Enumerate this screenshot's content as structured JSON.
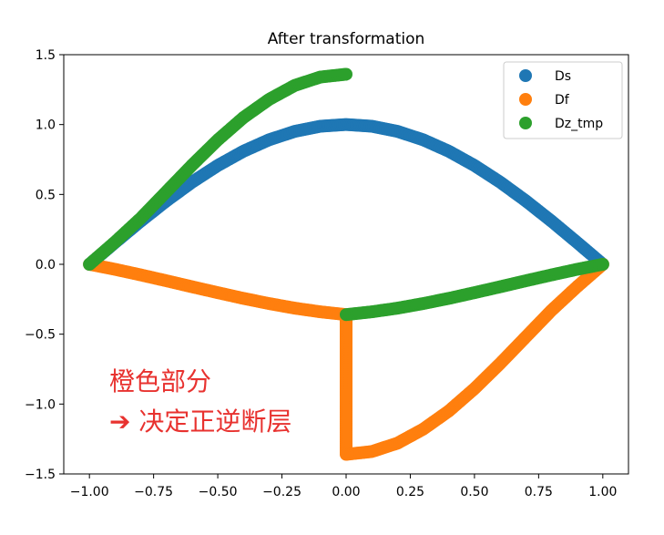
{
  "chart_data": {
    "type": "scatter",
    "title": "After transformation",
    "xlabel": "",
    "ylabel": "",
    "xlim": [
      -1.1,
      1.1
    ],
    "ylim": [
      -1.5,
      1.5
    ],
    "xticks": [
      -1.0,
      -0.75,
      -0.5,
      -0.25,
      0.0,
      0.25,
      0.5,
      0.75,
      1.0
    ],
    "xtick_labels": [
      "−1.00",
      "−0.75",
      "−0.50",
      "−0.25",
      "0.00",
      "0.25",
      "0.50",
      "0.75",
      "1.00"
    ],
    "yticks": [
      -1.5,
      -1.0,
      -0.5,
      0.0,
      0.5,
      1.0,
      1.5
    ],
    "ytick_labels": [
      "−1.5",
      "−1.0",
      "−0.5",
      "0.0",
      "0.5",
      "1.0",
      "1.5"
    ],
    "grid": false,
    "legend_position": "top-right",
    "series": [
      {
        "name": "Ds",
        "color": "#1f77b4",
        "x": [
          -1.0,
          -0.9,
          -0.8,
          -0.7,
          -0.6,
          -0.5,
          -0.4,
          -0.3,
          -0.2,
          -0.1,
          0.0,
          0.1,
          0.2,
          0.3,
          0.4,
          0.5,
          0.6,
          0.7,
          0.8,
          0.9,
          1.0
        ],
        "y": [
          0.0,
          0.156,
          0.309,
          0.454,
          0.588,
          0.707,
          0.809,
          0.891,
          0.951,
          0.988,
          1.0,
          0.988,
          0.951,
          0.891,
          0.809,
          0.707,
          0.588,
          0.454,
          0.309,
          0.156,
          0.0
        ]
      },
      {
        "name": "Df",
        "color": "#ff7f0e",
        "x": [
          -1.0,
          -0.9,
          -0.8,
          -0.7,
          -0.6,
          -0.5,
          -0.4,
          -0.3,
          -0.2,
          -0.1,
          0.0,
          0.0,
          0.1,
          0.2,
          0.3,
          0.4,
          0.5,
          0.6,
          0.7,
          0.8,
          0.9,
          1.0
        ],
        "y": [
          0.0,
          -0.036,
          -0.076,
          -0.118,
          -0.161,
          -0.203,
          -0.244,
          -0.281,
          -0.314,
          -0.34,
          -0.36,
          -1.36,
          -1.34,
          -1.28,
          -1.18,
          -1.05,
          -0.89,
          -0.71,
          -0.52,
          -0.33,
          -0.16,
          0.0
        ]
      },
      {
        "name": "Dz_tmp",
        "color": "#2ca02c",
        "x": [
          -1.0,
          -0.9,
          -0.8,
          -0.7,
          -0.6,
          -0.5,
          -0.4,
          -0.3,
          -0.2,
          -0.1,
          0.0,
          0.0,
          0.1,
          0.2,
          0.3,
          0.4,
          0.5,
          0.6,
          0.7,
          0.8,
          0.9,
          1.0
        ],
        "y": [
          0.0,
          0.16,
          0.33,
          0.52,
          0.71,
          0.89,
          1.05,
          1.18,
          1.28,
          1.34,
          1.36,
          -0.36,
          -0.34,
          -0.314,
          -0.281,
          -0.244,
          -0.203,
          -0.161,
          -0.118,
          -0.076,
          -0.036,
          0.0
        ]
      }
    ],
    "annotation": {
      "line1": "橙色部分",
      "line2": "➔ 决定正逆断层",
      "color": "#e8322f"
    }
  }
}
